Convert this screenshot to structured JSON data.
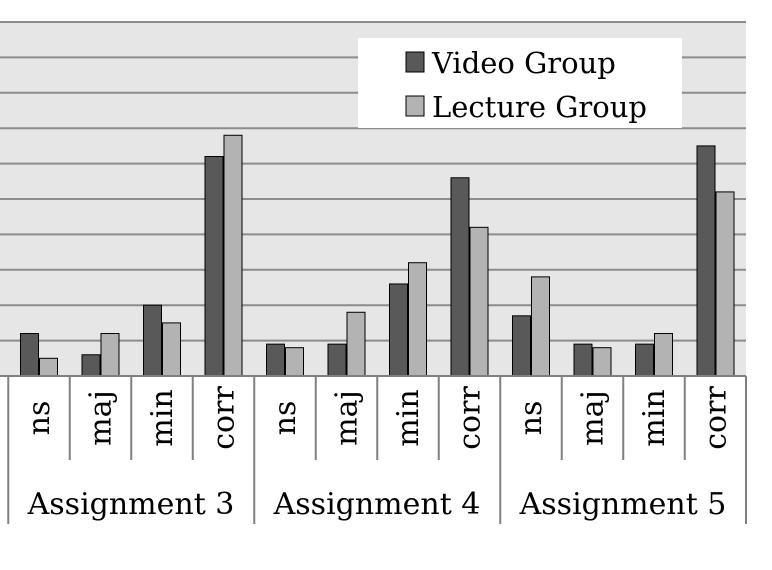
{
  "chart_data": {
    "type": "bar",
    "title": "",
    "xlabel": "",
    "ylabel": "",
    "groups": [
      {
        "label": "Assignment 3",
        "categories": [
          "ns",
          "maj",
          "min",
          "corr"
        ]
      },
      {
        "label": "Assignment 4",
        "categories": [
          "ns",
          "maj",
          "min",
          "corr"
        ]
      },
      {
        "label": "Assignment 5",
        "categories": [
          "ns",
          "maj",
          "min",
          "corr"
        ]
      }
    ],
    "series": [
      {
        "name": "Video Group",
        "color": "#595959",
        "values": [
          12,
          6,
          20,
          62,
          9,
          9,
          26,
          56,
          17,
          9,
          9,
          65
        ]
      },
      {
        "name": "Lecture Group",
        "color": "#b3b3b3",
        "values": [
          5,
          12,
          15,
          68,
          8,
          18,
          32,
          42,
          28,
          8,
          12,
          52
        ]
      }
    ],
    "ylim": [
      0,
      100
    ],
    "grid": true,
    "legend_position": "top-right",
    "plot_background": "#e6e6e6",
    "gridline_color": "#8c8c8c"
  }
}
